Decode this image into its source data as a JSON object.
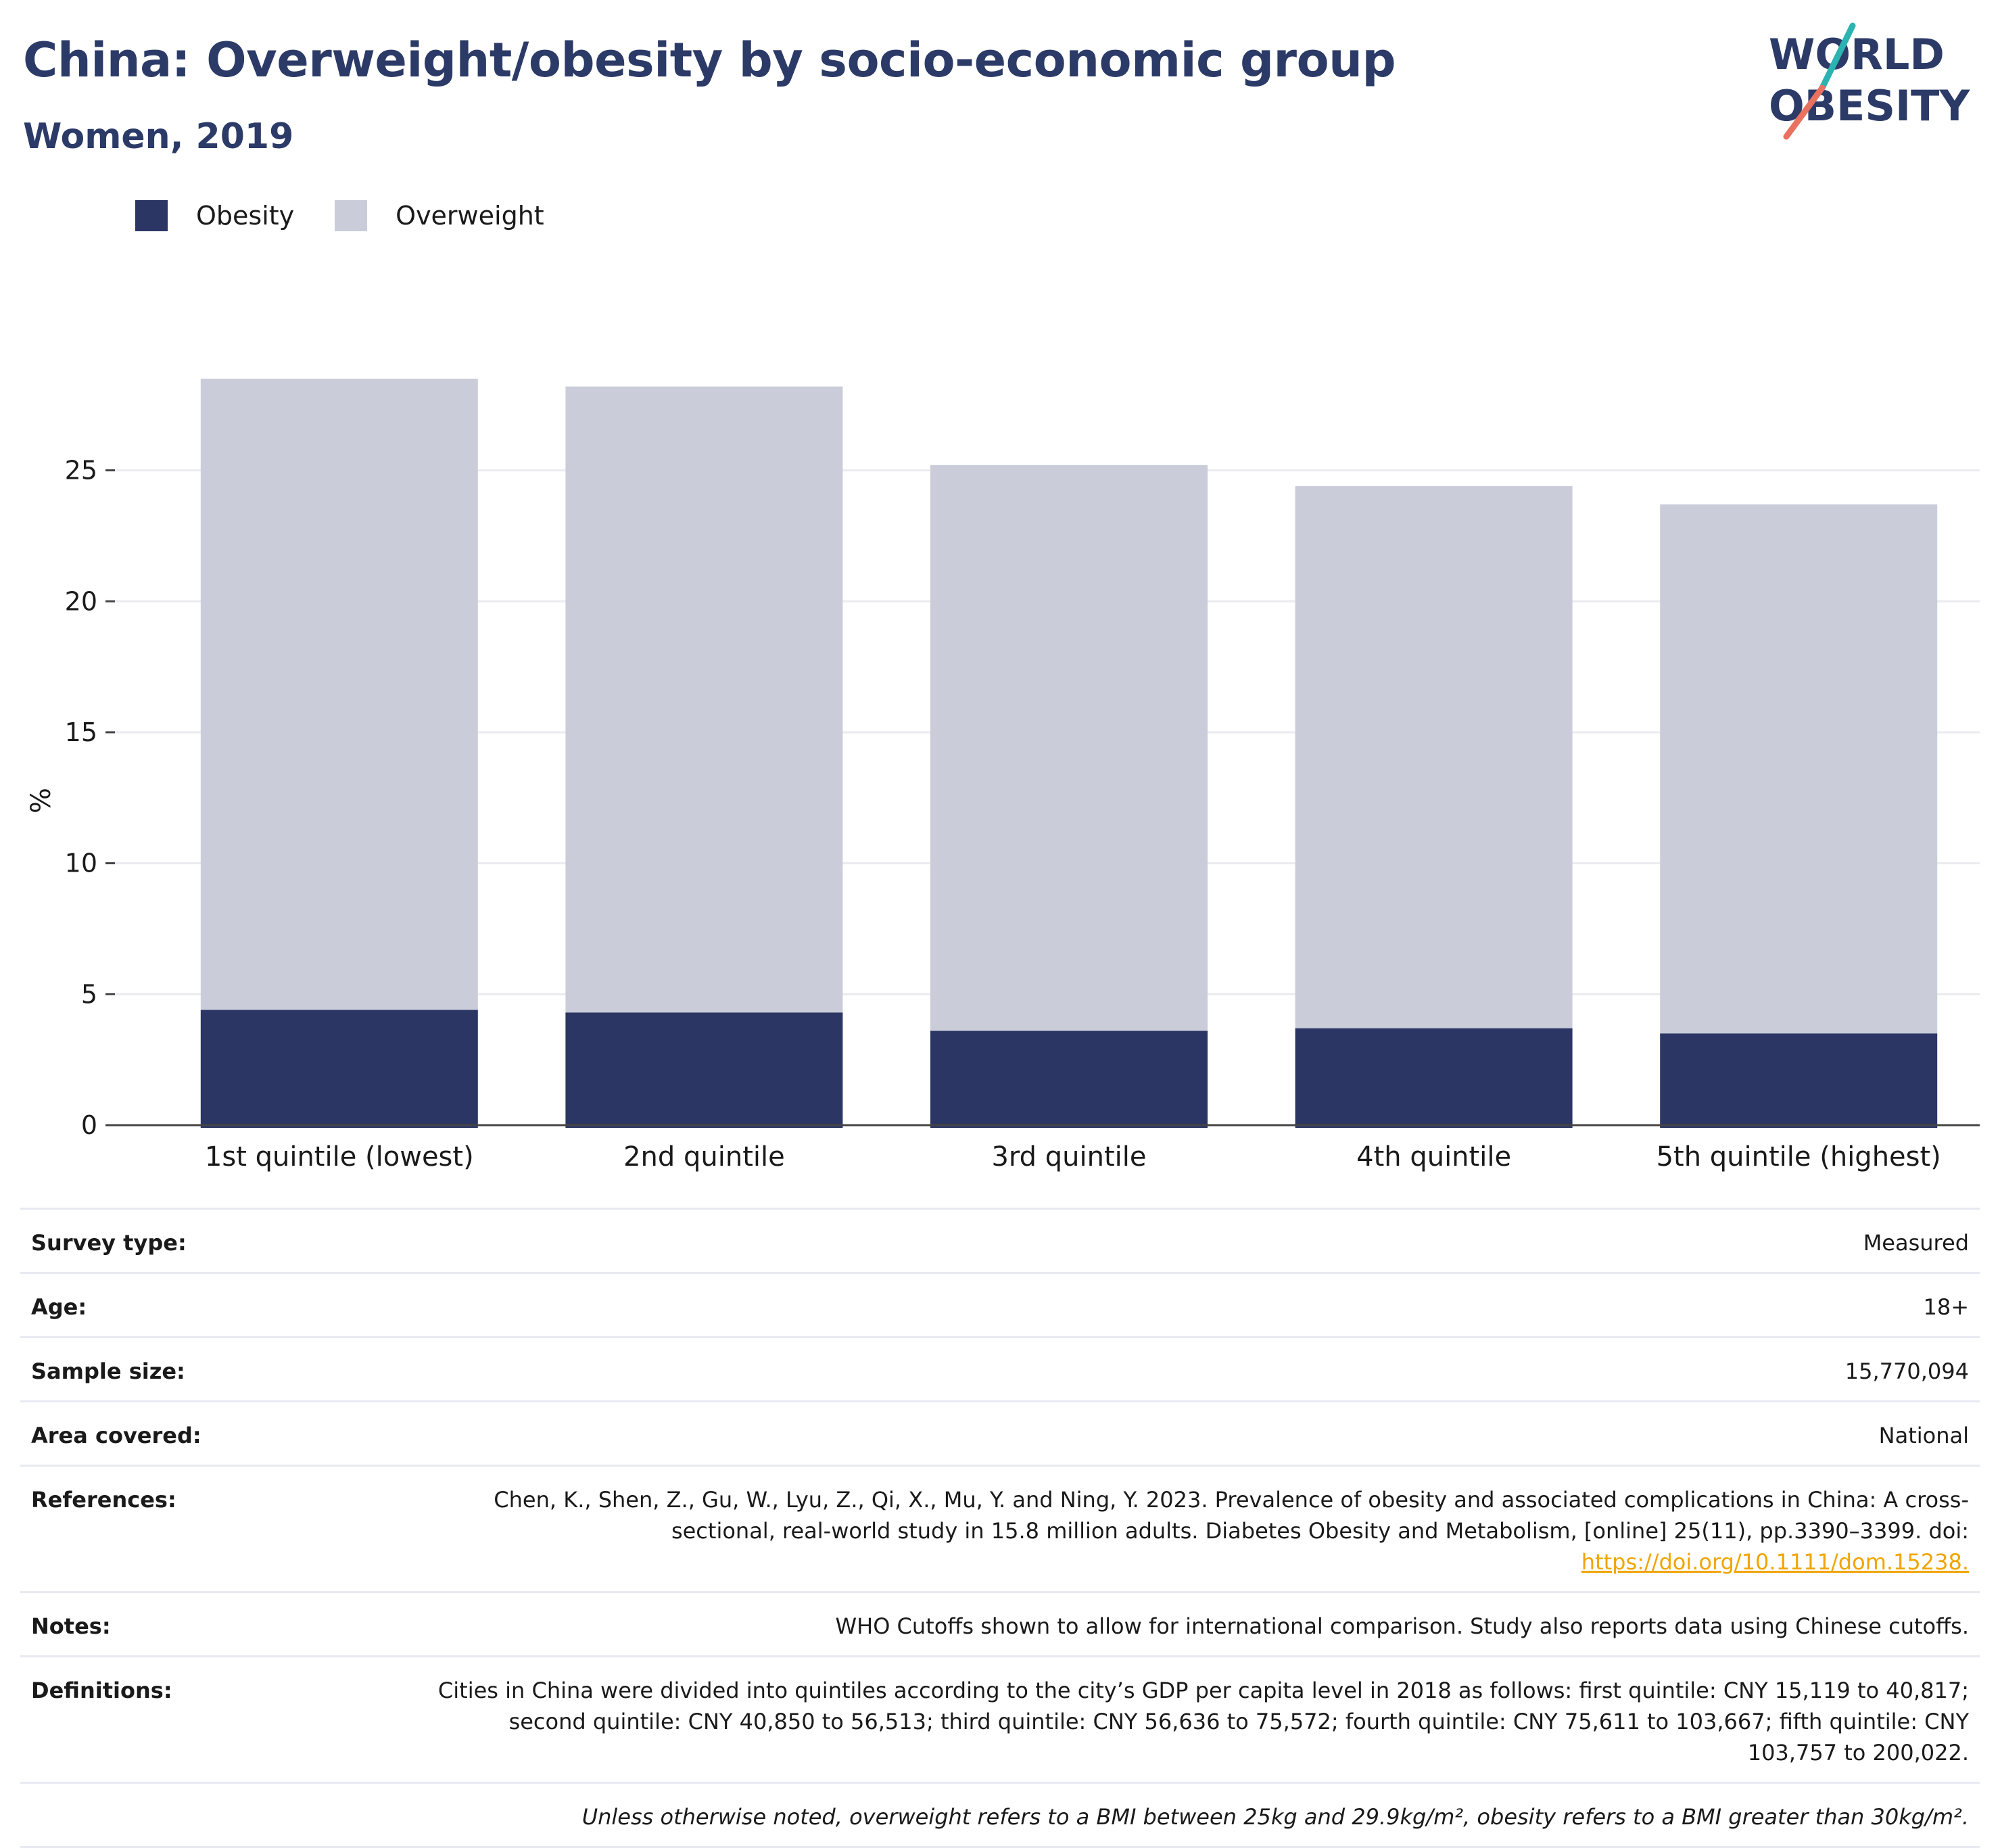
{
  "header": {
    "title": "China: Overweight/obesity by socio-economic group",
    "subtitle": "Women, 2019",
    "logo_line1": "WORLD",
    "logo_line2": "OBESITY"
  },
  "legend": {
    "obesity_label": "Obesity",
    "overweight_label": "Overweight"
  },
  "colors": {
    "obesity": "#2b3664",
    "overweight": "#cacdd9",
    "title": "#2b3a67",
    "logo_teal": "#2bb3b1",
    "logo_coral": "#e8725f",
    "link": "#f0a500"
  },
  "chart_data": {
    "type": "bar",
    "stacked": true,
    "categories": [
      "1st quintile (lowest)",
      "2nd quintile",
      "3rd quintile",
      "4th quintile",
      "5th quintile (highest)"
    ],
    "series": [
      {
        "name": "Obesity",
        "values": [
          4.4,
          4.3,
          3.6,
          3.7,
          3.5
        ]
      },
      {
        "name": "Overweight",
        "values": [
          24.1,
          23.9,
          21.6,
          20.7,
          20.2
        ]
      }
    ],
    "totals": [
      28.5,
      28.2,
      25.2,
      24.4,
      23.7
    ],
    "ylabel": "%",
    "ylim": [
      0,
      28.5
    ],
    "yticks": [
      0,
      5,
      10,
      15,
      20,
      25
    ],
    "grid": true,
    "legend_position": "top-left"
  },
  "meta": {
    "survey_type": {
      "label": "Survey type:",
      "value": "Measured"
    },
    "age": {
      "label": "Age:",
      "value": "18+"
    },
    "sample_size": {
      "label": "Sample size:",
      "value": "15,770,094"
    },
    "area": {
      "label": "Area covered:",
      "value": "National"
    },
    "references": {
      "label": "References:",
      "text": "Chen, K., Shen, Z., Gu, W., Lyu, Z., Qi, X., Mu, Y. and Ning, Y. 2023. Prevalence of obesity and associated complications in China: A cross-sectional, real-world study in 15.8 million adults. Diabetes Obesity and Metabolism, [online] 25(11), pp.3390–3399. doi:",
      "link": "https://doi.org/10.1111/dom.15238."
    },
    "notes": {
      "label": "Notes:",
      "value": "WHO Cutoffs shown to allow for international comparison. Study also reports data using Chinese cutoffs."
    },
    "definitions": {
      "label": "Definitions:",
      "value": "Cities in China were divided into quintiles according to the city’s GDP per capita level in 2018 as follows: first quintile: CNY 15,119 to 40,817; second quintile: CNY 40,850 to 56,513; third quintile: CNY 56,636 to 75,572; fourth quintile: CNY 75,611 to 103,667; fifth quintile: CNY 103,757 to 200,022."
    },
    "footnote": "Unless otherwise noted, overweight refers to a BMI between 25kg and 29.9kg/m², obesity refers to a BMI greater than 30kg/m²."
  }
}
